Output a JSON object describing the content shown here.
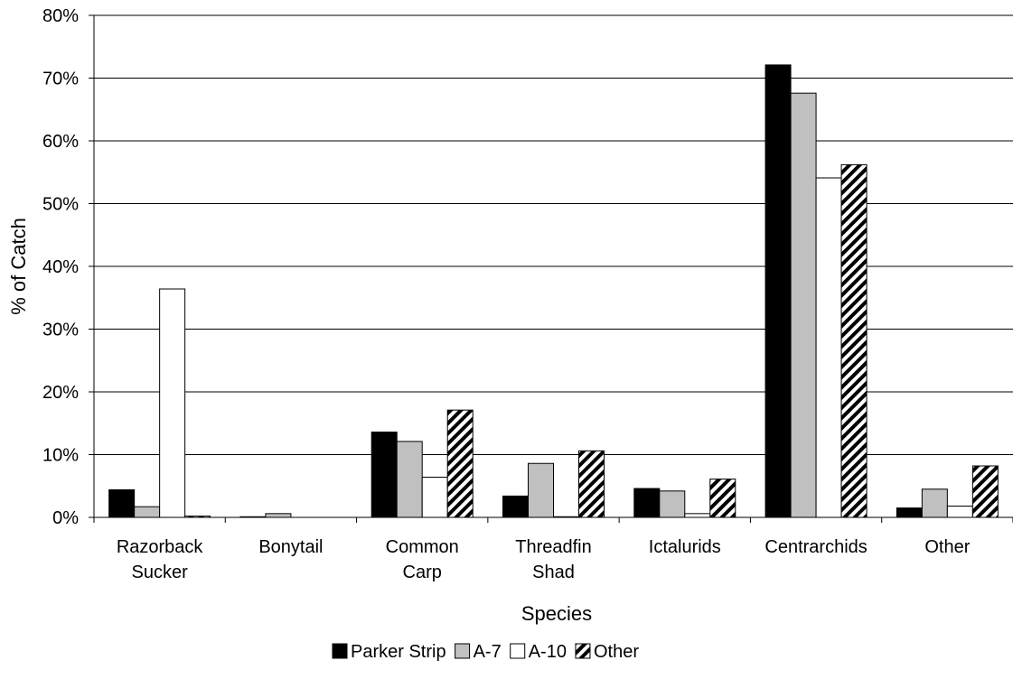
{
  "chart_data": {
    "type": "bar",
    "ylabel": "% of Catch",
    "xlabel": "Species",
    "ylim": [
      0,
      80
    ],
    "yticks": [
      "0%",
      "10%",
      "20%",
      "30%",
      "40%",
      "50%",
      "60%",
      "70%",
      "80%"
    ],
    "grid": "horizontal",
    "legend_position": "bottom",
    "categories": [
      [
        "Razorback",
        "Sucker"
      ],
      [
        "Bonytail"
      ],
      [
        "Common",
        "Carp"
      ],
      [
        "Threadfin",
        "Shad"
      ],
      [
        "Ictalurids"
      ],
      [
        "Centrarchids"
      ],
      [
        "Other"
      ]
    ],
    "series": [
      {
        "name": "Parker Strip",
        "fill": "#000000",
        "pattern": "solid",
        "values": [
          4.4,
          0.1,
          13.6,
          3.4,
          4.6,
          72.1,
          1.5
        ]
      },
      {
        "name": "A-7",
        "fill": "#c0c0c0",
        "pattern": "solid",
        "values": [
          1.7,
          0.6,
          12.1,
          8.6,
          4.2,
          67.6,
          4.5
        ]
      },
      {
        "name": "A-10",
        "fill": "#ffffff",
        "pattern": "solid",
        "values": [
          36.4,
          0,
          6.4,
          0.1,
          0.6,
          54.1,
          1.8
        ]
      },
      {
        "name": "Other",
        "fill": "#ffffff",
        "pattern": "diagonal-hatch",
        "values": [
          0.2,
          0,
          17.1,
          10.6,
          6.1,
          56.2,
          8.2
        ]
      }
    ]
  }
}
